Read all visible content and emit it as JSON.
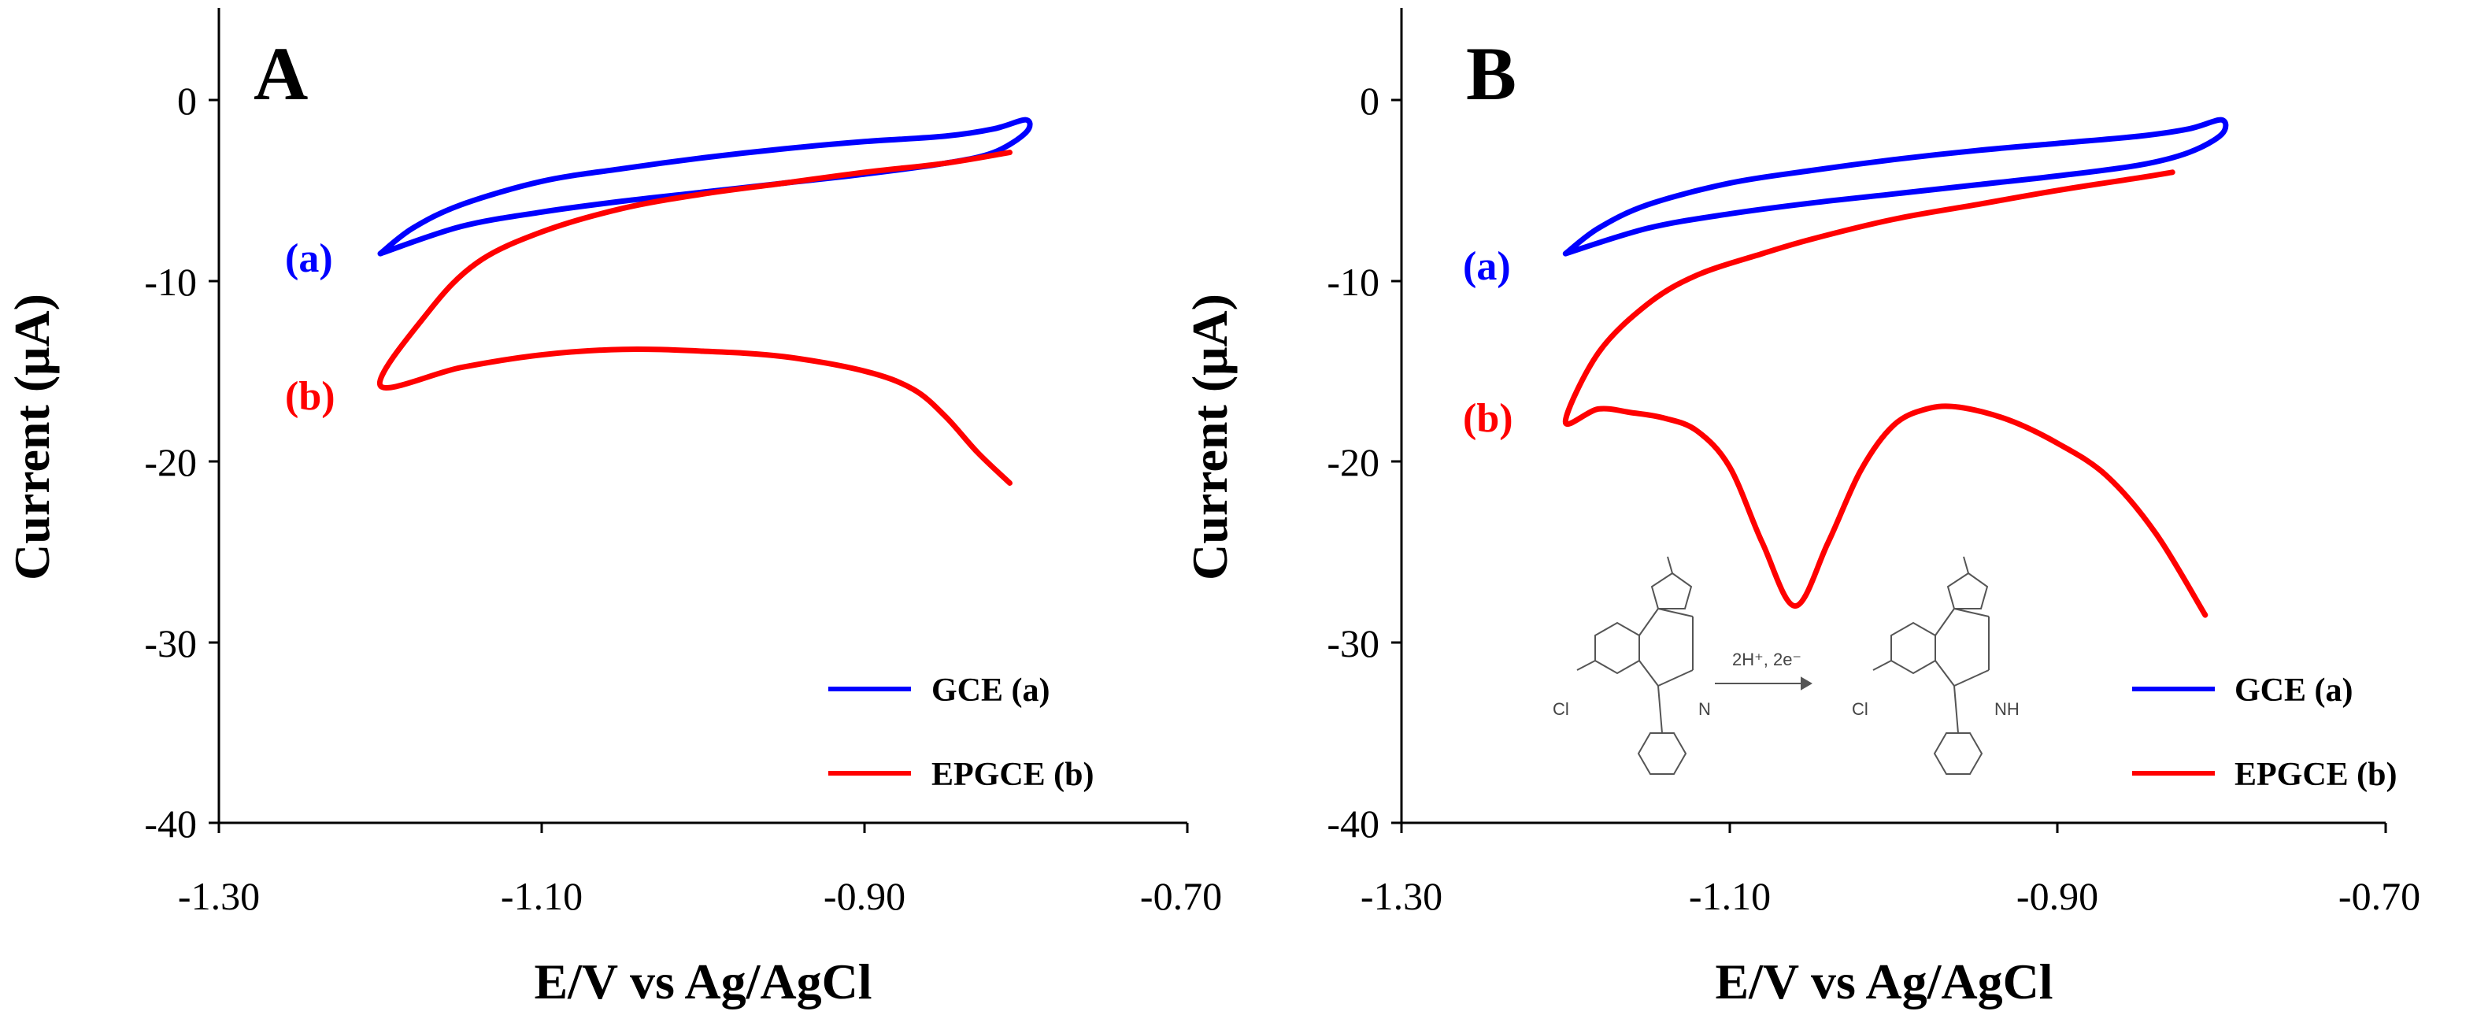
{
  "chart_data": [
    {
      "type": "line",
      "panel": "A",
      "xlabel": "E/V vs Ag/AgCl",
      "ylabel": "Current (μA)",
      "xlim": [
        -1.3,
        -0.7
      ],
      "ylim": [
        -40,
        4
      ],
      "xticks": [
        "-1.30",
        "-1.10",
        "-0.90",
        "-0.70"
      ],
      "yticks": [
        "0",
        "-10",
        "-20",
        "-30",
        "-40"
      ],
      "legend_position": "bottom-right",
      "series": [
        {
          "name": "GCE (a)",
          "label": "(a)",
          "color": "#0000ff",
          "x": [
            -1.2,
            -1.18,
            -1.15,
            -1.1,
            -1.05,
            -1.0,
            -0.95,
            -0.9,
            -0.85,
            -0.82,
            -0.8,
            -0.8,
            -0.82,
            -0.85,
            -0.9,
            -0.95,
            -1.0,
            -1.05,
            -1.1,
            -1.15,
            -1.2
          ],
          "y": [
            -8.5,
            -7.1,
            -5.8,
            -4.5,
            -3.8,
            -3.2,
            -2.7,
            -2.3,
            -2.0,
            -1.6,
            -1.1,
            -1.8,
            -2.9,
            -3.5,
            -4.1,
            -4.6,
            -5.1,
            -5.6,
            -6.2,
            -7.0,
            -8.5
          ]
        },
        {
          "name": "EPGCE (b)",
          "label": "(b)",
          "color": "#ff0000",
          "x": [
            -0.81,
            -0.83,
            -0.85,
            -0.87,
            -0.9,
            -0.95,
            -1.0,
            -1.05,
            -1.1,
            -1.15,
            -1.2,
            -1.17,
            -1.14,
            -1.1,
            -1.05,
            -1.0,
            -0.95,
            -0.9,
            -0.85,
            -0.81
          ],
          "y": [
            -21.2,
            -19.5,
            -17.5,
            -16.0,
            -15.0,
            -14.2,
            -13.9,
            -13.8,
            -14.1,
            -14.8,
            -15.8,
            -11.7,
            -9.0,
            -7.3,
            -6.0,
            -5.2,
            -4.6,
            -4.0,
            -3.5,
            -2.9
          ]
        }
      ]
    },
    {
      "type": "line",
      "panel": "B",
      "xlabel": "E/V vs Ag/AgCl",
      "ylabel": "Current (μA)",
      "xlim": [
        -1.3,
        -0.7
      ],
      "ylim": [
        -40,
        4
      ],
      "xticks": [
        "-1.30",
        "-1.10",
        "-0.90",
        "-0.70"
      ],
      "yticks": [
        "0",
        "-10",
        "-20",
        "-30",
        "-40"
      ],
      "legend_position": "bottom-right",
      "reaction": {
        "reagents": "2H⁺, 2e⁻",
        "substituent": "Cl",
        "imine": "N",
        "amine": "NH"
      },
      "series": [
        {
          "name": "GCE (a)",
          "label": "(a)",
          "color": "#0000ff",
          "x": [
            -1.2,
            -1.18,
            -1.15,
            -1.1,
            -1.05,
            -1.0,
            -0.95,
            -0.9,
            -0.85,
            -0.82,
            -0.8,
            -0.8,
            -0.82,
            -0.85,
            -0.9,
            -0.95,
            -1.0,
            -1.05,
            -1.1,
            -1.15,
            -1.2
          ],
          "y": [
            -8.5,
            -7.1,
            -5.8,
            -4.6,
            -3.9,
            -3.3,
            -2.8,
            -2.4,
            -2.0,
            -1.6,
            -1.1,
            -1.9,
            -2.9,
            -3.6,
            -4.2,
            -4.7,
            -5.2,
            -5.7,
            -6.3,
            -7.1,
            -8.5
          ]
        },
        {
          "name": "EPGCE (b)",
          "label": "(b)",
          "color": "#ff0000",
          "x": [
            -0.81,
            -0.84,
            -0.87,
            -0.9,
            -0.93,
            -0.96,
            -0.98,
            -1.0,
            -1.02,
            -1.04,
            -1.06,
            -1.08,
            -1.1,
            -1.12,
            -1.14,
            -1.16,
            -1.18,
            -1.2,
            -1.18,
            -1.15,
            -1.12,
            -1.08,
            -1.05,
            -1.0,
            -0.95,
            -0.9,
            -0.85,
            -0.83
          ],
          "y": [
            -28.5,
            -24.0,
            -20.8,
            -19.0,
            -17.7,
            -17.0,
            -17.1,
            -18.0,
            -20.5,
            -24.5,
            -28.0,
            -24.5,
            -20.3,
            -18.3,
            -17.6,
            -17.3,
            -17.1,
            -17.8,
            -14.0,
            -11.3,
            -9.7,
            -8.5,
            -7.7,
            -6.6,
            -5.8,
            -5.0,
            -4.3,
            -4.0
          ]
        }
      ]
    }
  ]
}
